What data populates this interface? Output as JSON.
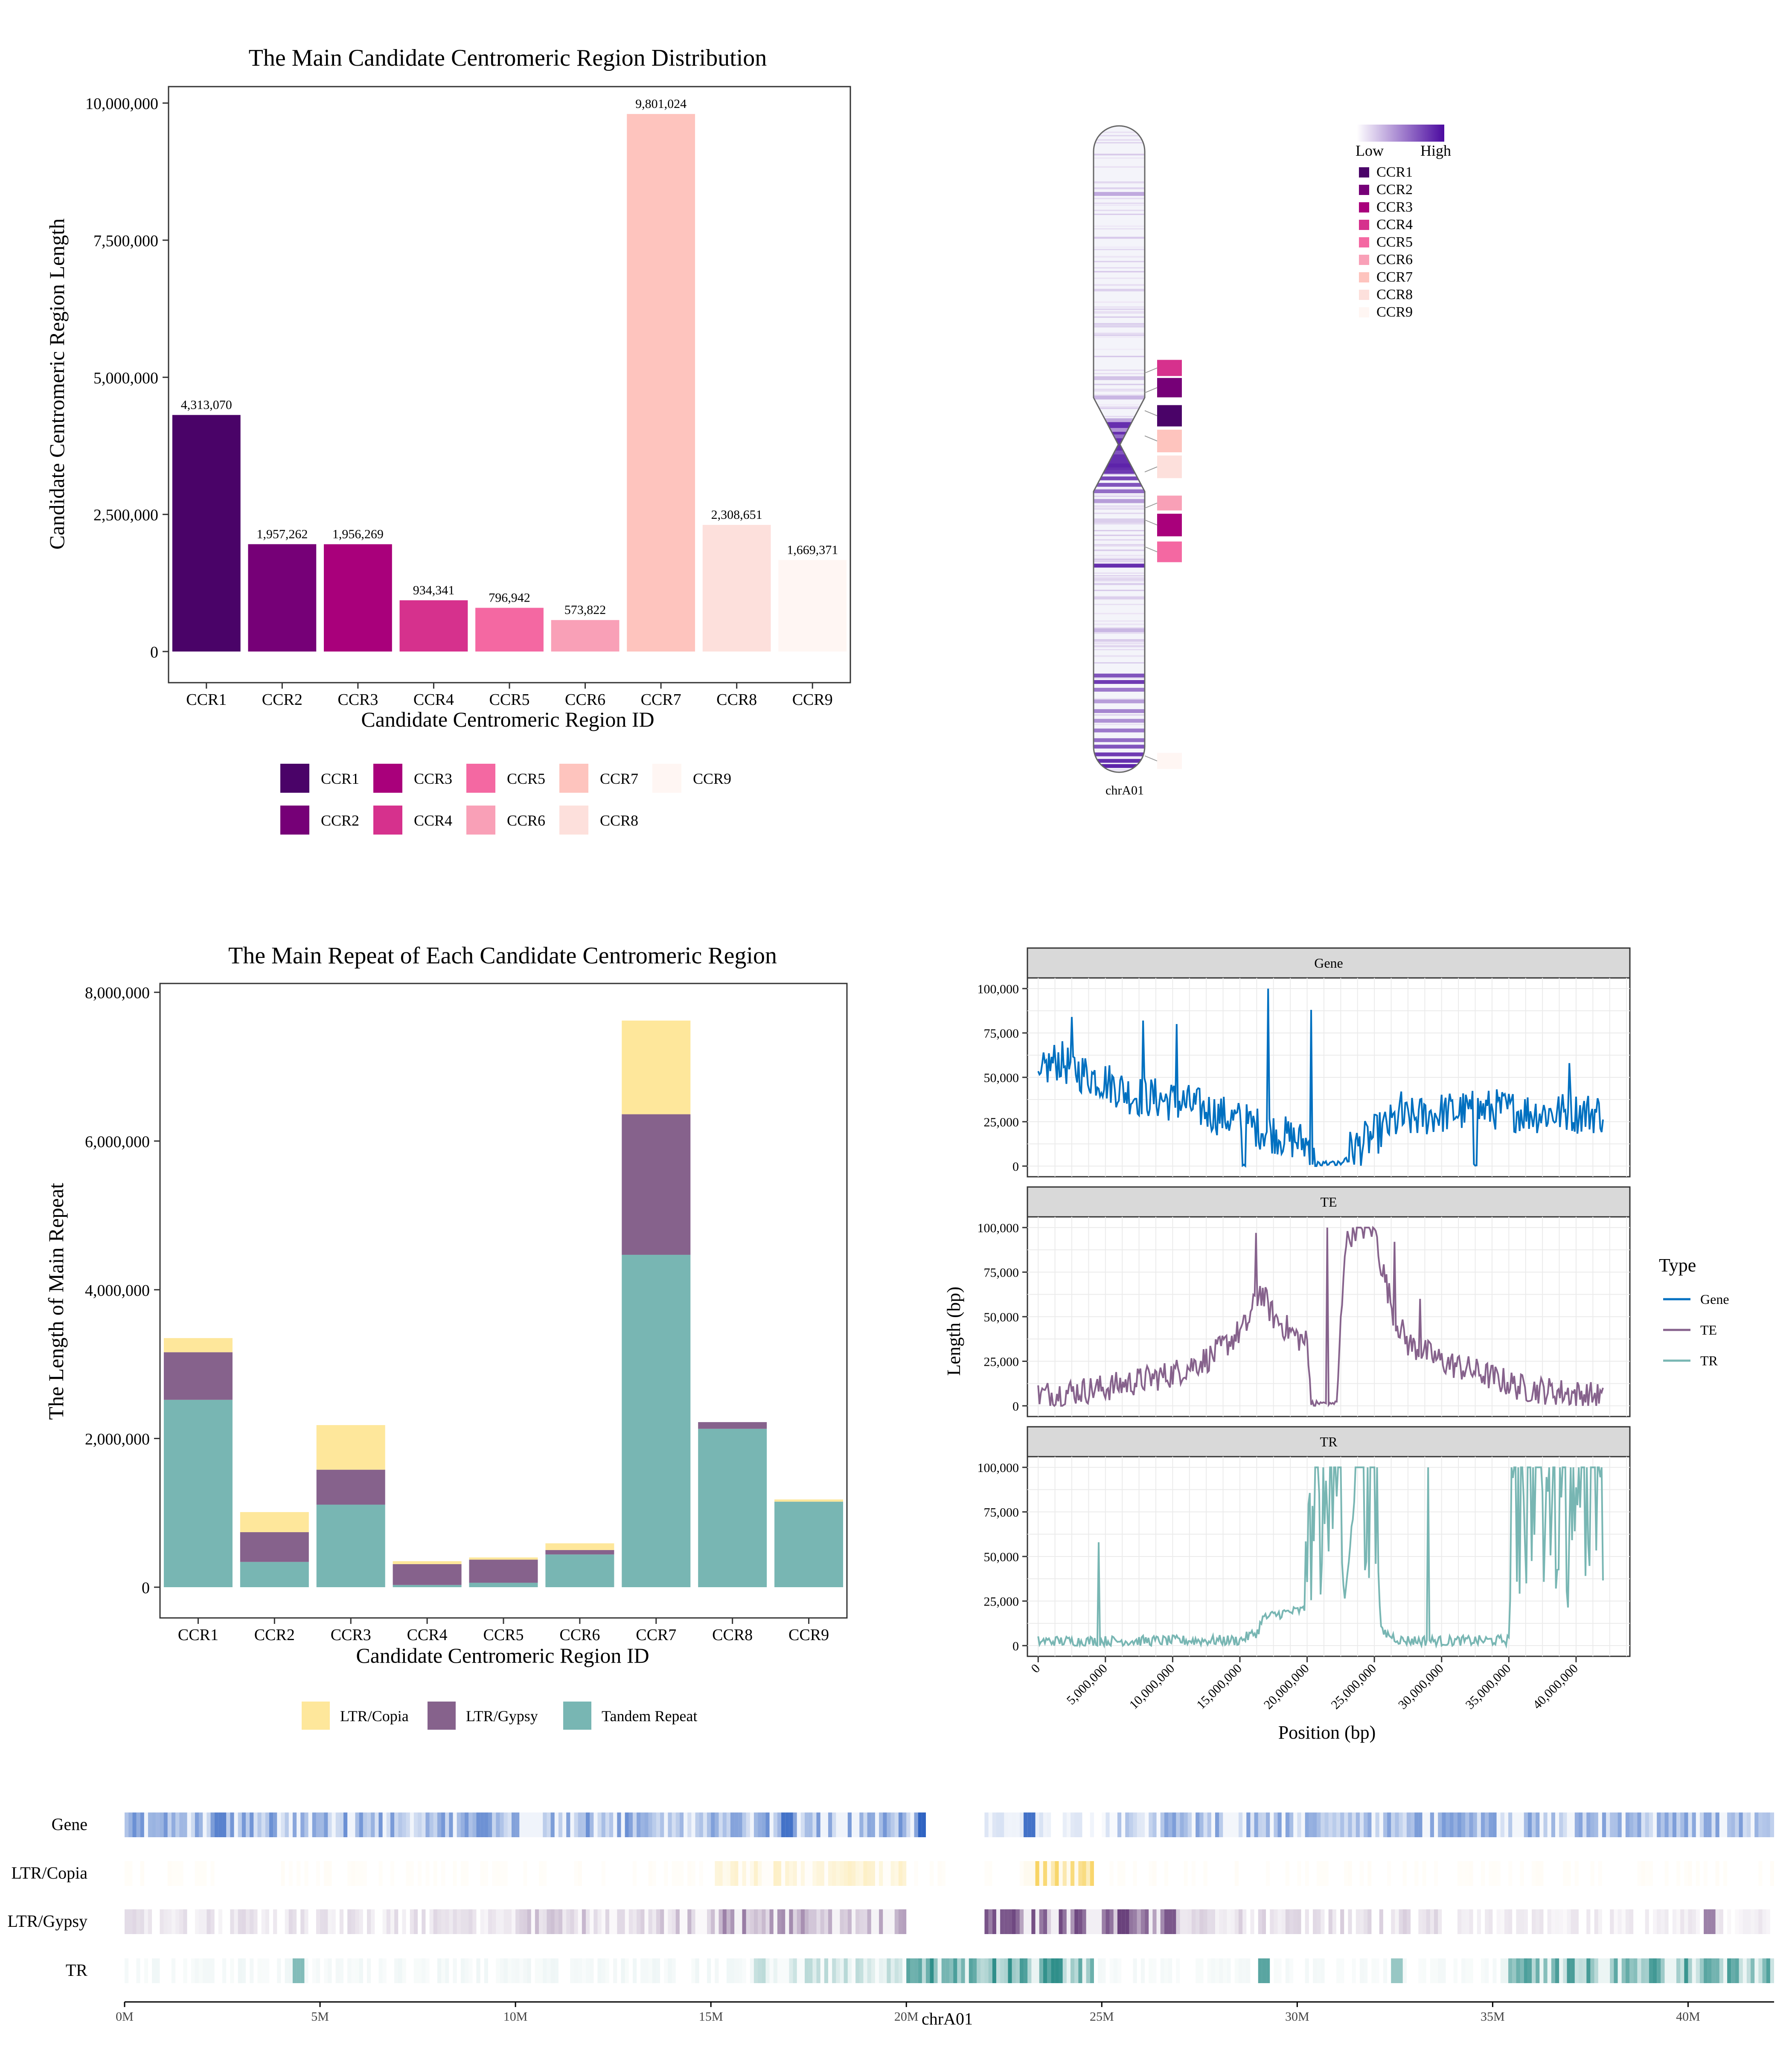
{
  "colors": {
    "ccr": [
      "#4A0368",
      "#760077",
      "#A9007B",
      "#D6318D",
      "#F468A2",
      "#F9A0B7",
      "#FEC4BE",
      "#FDE0DC",
      "#FFF6F3"
    ],
    "ltr_copia": "#FEE79B",
    "ltr_gypsy": "#86628C",
    "tandem": "#78B6B3",
    "gene_line": "#0070C0",
    "te_line": "#86628C",
    "tr_line": "#78B6B3",
    "gene_heat": "#2F63C2",
    "ideogram_high": "#4B0AA0",
    "panel_strip": "#D9D9D9"
  },
  "chart_data": [
    {
      "id": "ccr_lengths",
      "type": "bar",
      "title": "The Main Candidate Centromeric Region Distribution",
      "xlabel": "Candidate Centromeric Region ID",
      "ylabel": "Candidate Centromeric Region Length",
      "categories": [
        "CCR1",
        "CCR2",
        "CCR3",
        "CCR4",
        "CCR5",
        "CCR6",
        "CCR7",
        "CCR8",
        "CCR9"
      ],
      "values": [
        4313070,
        1957262,
        1956269,
        934341,
        796942,
        573822,
        9801024,
        2308651,
        1669371
      ],
      "value_labels": [
        "4,313,070",
        "1,957,262",
        "1,956,269",
        "934,341",
        "796,942",
        "573,822",
        "9,801,024",
        "2,308,651",
        "1,669,371"
      ],
      "ylim": [
        0,
        10300000
      ],
      "yticks": [
        0,
        2500000,
        5000000,
        7500000,
        10000000
      ],
      "ytick_labels": [
        "0",
        "2,500,000",
        "5,000,000",
        "7,500,000",
        "10,000,000"
      ],
      "legend": [
        "CCR1",
        "CCR2",
        "CCR3",
        "CCR4",
        "CCR5",
        "CCR6",
        "CCR7",
        "CCR8",
        "CCR9"
      ],
      "legend_position": "bottom",
      "grid": false
    },
    {
      "id": "ideogram",
      "type": "heatmap",
      "chromosome": "chrA01",
      "legend_low": "Low",
      "legend_high": "High",
      "legend": [
        "CCR1",
        "CCR2",
        "CCR3",
        "CCR4",
        "CCR5",
        "CCR6",
        "CCR7",
        "CCR8",
        "CCR9"
      ],
      "legend_position": "top-right",
      "centromere_fraction": 0.493,
      "bands": [
        {
          "at": 0.105,
          "level": 0.35
        },
        {
          "at": 0.39,
          "level": 0.25
        },
        {
          "at": 0.42,
          "level": 0.3
        },
        {
          "at": 0.455,
          "level": 0.35
        },
        {
          "at": 0.47,
          "level": 0.45
        },
        {
          "at": 0.48,
          "level": 0.6
        },
        {
          "at": 0.505,
          "level": 0.7
        },
        {
          "at": 0.515,
          "level": 0.85
        },
        {
          "at": 0.525,
          "level": 0.9
        },
        {
          "at": 0.535,
          "level": 0.8
        },
        {
          "at": 0.545,
          "level": 0.75
        },
        {
          "at": 0.555,
          "level": 0.7
        },
        {
          "at": 0.565,
          "level": 0.6
        },
        {
          "at": 0.58,
          "level": 0.4
        },
        {
          "at": 0.61,
          "level": 0.2
        },
        {
          "at": 0.68,
          "level": 0.85
        },
        {
          "at": 0.78,
          "level": 0.3
        },
        {
          "at": 0.85,
          "level": 0.7
        },
        {
          "at": 0.86,
          "level": 0.8
        },
        {
          "at": 0.872,
          "level": 0.55
        },
        {
          "at": 0.89,
          "level": 0.4
        },
        {
          "at": 0.905,
          "level": 0.5
        },
        {
          "at": 0.92,
          "level": 0.45
        },
        {
          "at": 0.935,
          "level": 0.55
        },
        {
          "at": 0.95,
          "level": 0.6
        },
        {
          "at": 0.96,
          "level": 0.7
        },
        {
          "at": 0.972,
          "level": 0.8
        },
        {
          "at": 0.982,
          "level": 0.85
        },
        {
          "at": 0.99,
          "level": 0.9
        }
      ],
      "ccr_blocks": [
        {
          "ccr": "CCR4",
          "from": 0.362,
          "to": 0.387
        },
        {
          "ccr": "CCR2",
          "from": 0.39,
          "to": 0.42
        },
        {
          "ccr": "CCR1",
          "from": 0.432,
          "to": 0.465
        },
        {
          "ccr": "CCR7",
          "from": 0.47,
          "to": 0.505
        },
        {
          "ccr": "CCR8",
          "from": 0.51,
          "to": 0.545
        },
        {
          "ccr": "CCR6",
          "from": 0.572,
          "to": 0.595
        },
        {
          "ccr": "CCR3",
          "from": 0.6,
          "to": 0.635
        },
        {
          "ccr": "CCR5",
          "from": 0.643,
          "to": 0.675
        },
        {
          "ccr": "CCR9",
          "from": 0.97,
          "to": 0.995
        }
      ]
    },
    {
      "id": "main_repeat",
      "type": "bar",
      "stacked": true,
      "title": "The Main Repeat of Each Candidate Centromeric Region",
      "xlabel": "Candidate Centromeric Region ID",
      "ylabel": "The Length of Main Repeat",
      "categories": [
        "CCR1",
        "CCR2",
        "CCR3",
        "CCR4",
        "CCR5",
        "CCR6",
        "CCR7",
        "CCR8",
        "CCR9"
      ],
      "series": [
        {
          "name": "Tandem Repeat",
          "values": [
            2520000,
            340000,
            1110000,
            30000,
            60000,
            440000,
            4470000,
            2130000,
            1150000
          ]
        },
        {
          "name": "LTR/Gypsy",
          "values": [
            640000,
            400000,
            470000,
            280000,
            310000,
            60000,
            1890000,
            90000,
            0
          ]
        },
        {
          "name": "LTR/Copia",
          "values": [
            190000,
            270000,
            600000,
            40000,
            30000,
            90000,
            1260000,
            0,
            30000
          ]
        }
      ],
      "legend_order": [
        "LTR/Copia",
        "LTR/Gypsy",
        "Tandem Repeat"
      ],
      "ylim": [
        0,
        8000000
      ],
      "yticks": [
        0,
        2000000,
        4000000,
        6000000,
        8000000
      ],
      "ytick_labels": [
        "0",
        "2,000,000",
        "4,000,000",
        "6,000,000",
        "8,000,000"
      ],
      "legend_position": "bottom",
      "grid": false
    },
    {
      "id": "density_lines",
      "type": "line",
      "facets": [
        "Gene",
        "TE",
        "TR"
      ],
      "xlabel": "Position (bp)",
      "ylabel": "Length (bp)",
      "legend_title": "Type",
      "legend": [
        "Gene",
        "TE",
        "TR"
      ],
      "legend_position": "right",
      "xlim": [
        -800000,
        44000000
      ],
      "xticks": [
        0,
        5000000,
        10000000,
        15000000,
        20000000,
        25000000,
        30000000,
        35000000,
        40000000
      ],
      "xtick_labels": [
        "0",
        "5,000,000",
        "10,000,000",
        "15,000,000",
        "20,000,000",
        "25,000,000",
        "30,000,000",
        "35,000,000",
        "40,000,000"
      ],
      "ylim": [
        -6000,
        106000
      ],
      "yticks": [
        0,
        25000,
        50000,
        75000,
        100000
      ],
      "ytick_labels": [
        "0",
        "25,000",
        "50,000",
        "75,000",
        "100,000"
      ],
      "x_max": 42000000,
      "bin_size": 100000,
      "grid": true,
      "profiles": {
        "Gene": [
          [
            0,
            42000
          ],
          [
            0.5,
            55000
          ],
          [
            1.5,
            60000
          ],
          [
            2.5,
            55000
          ],
          [
            3.5,
            52000
          ],
          [
            5,
            48000
          ],
          [
            7,
            40000
          ],
          [
            9,
            38000
          ],
          [
            11,
            35000
          ],
          [
            13,
            30000
          ],
          [
            15,
            25000
          ],
          [
            17,
            20000
          ],
          [
            19,
            15000
          ],
          [
            20.2,
            12000
          ],
          [
            20.5,
            2000
          ],
          [
            22.5,
            2000
          ],
          [
            23.0,
            8000
          ],
          [
            24,
            12000
          ],
          [
            26.5,
            25000
          ],
          [
            30,
            30000
          ],
          [
            34,
            32000
          ],
          [
            37,
            30000
          ],
          [
            42,
            30000
          ]
        ],
        "TE": [
          [
            0,
            6000
          ],
          [
            5,
            10000
          ],
          [
            10,
            18000
          ],
          [
            13,
            28000
          ],
          [
            15.5,
            45000
          ],
          [
            16.5,
            65000
          ],
          [
            17.5,
            50000
          ],
          [
            19,
            40000
          ],
          [
            20.0,
            35000
          ],
          [
            20.3,
            1000
          ],
          [
            22.2,
            1000
          ],
          [
            22.8,
            90000
          ],
          [
            23.5,
            100000
          ],
          [
            25,
            100000
          ],
          [
            25.5,
            80000
          ],
          [
            26.5,
            50000
          ],
          [
            27.5,
            35000
          ],
          [
            30,
            25000
          ],
          [
            33,
            18000
          ],
          [
            36,
            10000
          ],
          [
            42,
            5000
          ]
        ],
        "TR": [
          [
            0,
            2500
          ],
          [
            4,
            2500
          ],
          [
            15,
            3000
          ],
          [
            16.4,
            8000
          ],
          [
            16.6,
            15000
          ],
          [
            18,
            18000
          ],
          [
            19.8,
            20000
          ],
          [
            20.0,
            100000
          ],
          [
            21.8,
            95000
          ],
          [
            22.3,
            80000
          ],
          [
            22.8,
            25000
          ],
          [
            23.5,
            80000
          ],
          [
            25,
            85000
          ],
          [
            25.5,
            8000
          ],
          [
            27,
            3000
          ],
          [
            30,
            2500
          ],
          [
            35,
            3000
          ],
          [
            35.3,
            80000
          ],
          [
            36,
            60000
          ],
          [
            37,
            50000
          ],
          [
            38,
            60000
          ],
          [
            40,
            70000
          ],
          [
            42,
            60000
          ]
        ]
      },
      "spikes": {
        "Gene": [
          [
            2.5,
            84000
          ],
          [
            7.8,
            82000
          ],
          [
            10.3,
            80000
          ],
          [
            17.1,
            100000
          ],
          [
            20.3,
            88000
          ],
          [
            27.0,
            42000
          ],
          [
            39.5,
            58000
          ]
        ],
        "TE": [
          [
            16.2,
            97000
          ],
          [
            21.5,
            100000
          ],
          [
            23.0,
            98000
          ],
          [
            26.5,
            92000
          ],
          [
            28.4,
            60000
          ]
        ],
        "TR": [
          [
            4.5,
            58000
          ],
          [
            29.0,
            100000
          ]
        ]
      },
      "dropouts": {
        "Gene": [
          [
            20.8,
            22.6
          ],
          [
            15.2,
            15.4
          ],
          [
            32.4,
            32.6
          ]
        ],
        "TE": [
          [
            20.3,
            22.2
          ]
        ],
        "TR": []
      },
      "amp": {
        "Gene": 12000,
        "TE": 8000,
        "TR": 3000
      },
      "saturate_bands": {
        "TR": [
          [
            20.0,
            22.6
          ],
          [
            23.6,
            25.2
          ],
          [
            35.2,
            42.0
          ]
        ]
      }
    },
    {
      "id": "heat_tracks",
      "type": "heatmap",
      "tracks": [
        "Gene",
        "LTR/Copia",
        "LTR/Gypsy",
        "TR"
      ],
      "xlabel": "chrA01",
      "xticks": [
        0,
        5,
        10,
        15,
        20,
        25,
        30,
        35,
        40
      ],
      "xtick_labels": [
        "0M",
        "5M",
        "10M",
        "15M",
        "20M",
        "25M",
        "30M",
        "35M",
        "40M"
      ],
      "xlim_m": [
        0,
        42.2
      ],
      "regions": {
        "Gene": [
          [
            0,
            20.5,
            0.45
          ],
          [
            20.5,
            22.0,
            0.0
          ],
          [
            22.0,
            25.0,
            0.12
          ],
          [
            25.0,
            26.5,
            0.25
          ],
          [
            26.5,
            42.2,
            0.4
          ]
        ],
        "LTR/Copia": [
          [
            0,
            15,
            0.03
          ],
          [
            15,
            20,
            0.2
          ],
          [
            20,
            23,
            0.03
          ],
          [
            23,
            24.8,
            0.6
          ],
          [
            24.8,
            42.2,
            0.03
          ]
        ],
        "LTR/Gypsy": [
          [
            0,
            10,
            0.12
          ],
          [
            10,
            15,
            0.22
          ],
          [
            15,
            20,
            0.4
          ],
          [
            20,
            22,
            0.02
          ],
          [
            22,
            27,
            0.55
          ],
          [
            27,
            34,
            0.15
          ],
          [
            34,
            42.2,
            0.08
          ]
        ],
        "TR": [
          [
            0,
            16,
            0.05
          ],
          [
            16,
            20,
            0.22
          ],
          [
            20,
            24.8,
            0.7
          ],
          [
            24.8,
            35.2,
            0.04
          ],
          [
            35.2,
            42.2,
            0.6
          ]
        ]
      },
      "hotspots": {
        "Gene": [
          [
            16.9,
            0.9
          ],
          [
            20.4,
            1.0
          ],
          [
            23.1,
            0.9
          ],
          [
            2.4,
            0.8
          ],
          [
            9.1,
            0.7
          ]
        ],
        "LTR/Copia": [],
        "LTR/Gypsy": [
          [
            22.5,
            0.8
          ],
          [
            25.5,
            0.9
          ],
          [
            26.7,
            0.8
          ],
          [
            40.5,
            0.6
          ]
        ],
        "TR": [
          [
            4.4,
            0.6
          ],
          [
            29.1,
            0.8
          ],
          [
            32.5,
            0.5
          ]
        ]
      }
    }
  ]
}
